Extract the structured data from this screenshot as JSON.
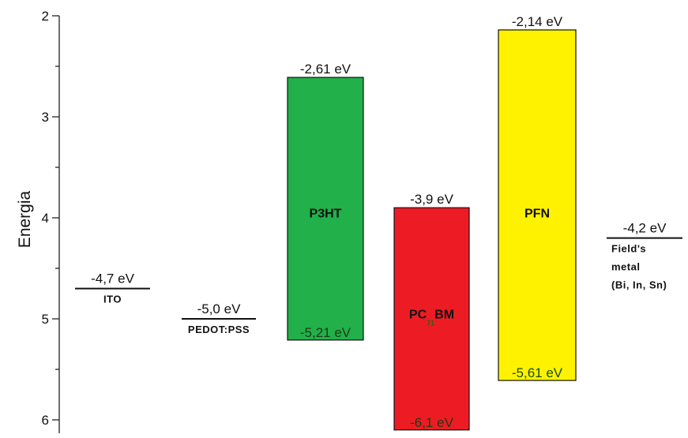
{
  "chart_data": {
    "type": "energy-level-diagram",
    "ylabel": "Energia",
    "ylim": [
      2,
      6.1
    ],
    "yaxis_inverted": true,
    "yticks": [
      2,
      3,
      4,
      5,
      6
    ],
    "levels": [
      {
        "name": "ITO",
        "value": -4.7,
        "label": "-4,7 eV",
        "x_slot": 1
      },
      {
        "name": "PEDOT:PSS",
        "value": -5.0,
        "label": "-5,0 eV",
        "x_slot": 2
      },
      {
        "name_lines": [
          "Field's",
          "metal",
          "(Bi, In, Sn)"
        ],
        "value": -4.2,
        "label": "-4,2 eV",
        "x_slot": 6
      }
    ],
    "bands": [
      {
        "name": "P3HT",
        "top": -2.61,
        "bottom": -5.21,
        "top_label": "-2,61 eV",
        "bottom_label": "-5,21 eV",
        "color": "#22b04b",
        "bottom_label_color": "#1a3d12",
        "x_slot": 3
      },
      {
        "name": "PC",
        "name_subscript": "71",
        "name_suffix": "BM",
        "top": -3.9,
        "bottom": -6.1,
        "top_label": "-3,9 eV",
        "bottom_label": "-6,1 eV",
        "color": "#ed1c24",
        "bottom_label_color": "#1a3d12",
        "subscript_color": "#1a6b12",
        "x_slot": 4
      },
      {
        "name": "PFN",
        "top": -2.14,
        "bottom": -5.61,
        "top_label": "-2,14 eV",
        "bottom_label": "-5,61 eV",
        "color": "#fff200",
        "bottom_label_color": "#1a4d12",
        "x_slot": 5
      }
    ]
  }
}
